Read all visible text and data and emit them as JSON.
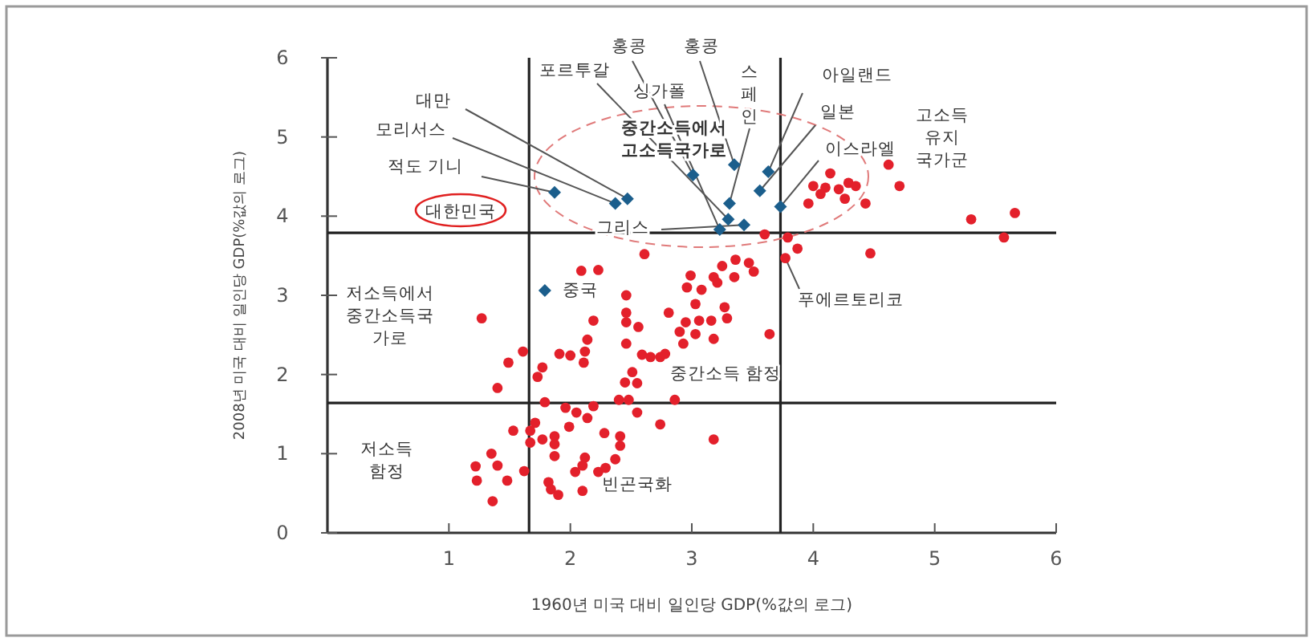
{
  "chart_data": {
    "type": "scatter",
    "xlabel": "1960년 미국 대비 일인당 GDP(%값의 로그)",
    "ylabel": "2008년 미국 대비 일인당 GDP(%값의 로그)",
    "xlim": [
      0,
      6
    ],
    "ylim": [
      0,
      6
    ],
    "xticks": [
      1,
      2,
      3,
      4,
      5,
      6
    ],
    "yticks": [
      0,
      1,
      2,
      3,
      4,
      5,
      6
    ],
    "grid": false,
    "series": [
      {
        "color": "#e3202b",
        "marker": "circle",
        "x": [
          2.61,
          2.09,
          2.23,
          3.36,
          3.25,
          3.47,
          3.51,
          2.99,
          3.18,
          3.35,
          3.21,
          2.96,
          3.08,
          2.46,
          3.03,
          3.27,
          2.46,
          2.81,
          1.27,
          2.19,
          2.46,
          2.95,
          3.06,
          3.16,
          3.29,
          2.56,
          2.9,
          3.03,
          3.18,
          3.64,
          2.14,
          2.46,
          2.93,
          1.61,
          1.91,
          2.0,
          2.12,
          2.59,
          2.66,
          2.74,
          2.78,
          1.49,
          1.77,
          2.11,
          2.51,
          1.73,
          2.45,
          2.55,
          1.4,
          2.4,
          2.48,
          2.86,
          1.79,
          1.96,
          2.05,
          2.19,
          2.55,
          2.14,
          1.71,
          1.53,
          1.67,
          1.99,
          2.74,
          2.28,
          2.41,
          1.77,
          1.67,
          1.87,
          1.87,
          3.18,
          2.41,
          1.35,
          1.87,
          2.12,
          2.37,
          1.22,
          1.4,
          2.1,
          1.62,
          2.04,
          2.23,
          2.29,
          1.23,
          1.48,
          1.82,
          1.84,
          1.9,
          2.1,
          1.36,
          4.62,
          4.14,
          4.0,
          4.1,
          4.21,
          4.29,
          4.35,
          4.06,
          4.26,
          4.43,
          3.96,
          4.71,
          5.3,
          5.66,
          5.57,
          4.47,
          3.6,
          3.79,
          3.87,
          3.77
        ],
        "values": [
          3.52,
          3.31,
          3.32,
          3.45,
          3.37,
          3.41,
          3.3,
          3.25,
          3.23,
          3.23,
          3.16,
          3.1,
          3.07,
          3.0,
          2.89,
          2.85,
          2.78,
          2.78,
          2.71,
          2.68,
          2.66,
          2.66,
          2.68,
          2.68,
          2.71,
          2.6,
          2.54,
          2.51,
          2.45,
          2.51,
          2.44,
          2.39,
          2.39,
          2.29,
          2.26,
          2.24,
          2.29,
          2.25,
          2.22,
          2.22,
          2.26,
          2.15,
          2.09,
          2.15,
          2.03,
          1.97,
          1.9,
          1.89,
          1.83,
          1.68,
          1.68,
          1.68,
          1.65,
          1.58,
          1.52,
          1.6,
          1.52,
          1.45,
          1.39,
          1.29,
          1.29,
          1.34,
          1.37,
          1.26,
          1.22,
          1.18,
          1.14,
          1.22,
          1.12,
          1.18,
          1.1,
          1.0,
          0.97,
          0.95,
          0.93,
          0.84,
          0.85,
          0.85,
          0.78,
          0.77,
          0.77,
          0.82,
          0.66,
          0.66,
          0.64,
          0.55,
          0.48,
          0.53,
          0.4,
          4.65,
          4.54,
          4.38,
          4.36,
          4.34,
          4.42,
          4.38,
          4.28,
          4.22,
          4.16,
          4.16,
          4.38,
          3.96,
          4.04,
          3.73,
          3.53,
          3.77,
          3.73,
          3.59,
          3.47
        ]
      },
      {
        "color": "#1b5e8c",
        "marker": "diamond",
        "x": [
          1.87,
          2.37,
          2.47,
          1.79,
          3.01,
          3.35,
          3.63,
          3.56,
          3.31,
          3.3,
          3.43,
          3.23,
          3.73
        ],
        "values": [
          4.3,
          4.16,
          4.22,
          3.06,
          4.52,
          4.65,
          4.56,
          4.32,
          4.16,
          3.96,
          3.89,
          3.83,
          4.12
        ]
      }
    ],
    "ref_lines": [
      {
        "axis": "x",
        "value": 1.66,
        "color": "#222222"
      },
      {
        "axis": "x",
        "value": 3.73,
        "color": "#222222"
      },
      {
        "axis": "y",
        "value": 3.79,
        "color": "#222222"
      },
      {
        "axis": "y",
        "value": 1.64,
        "color": "#222222"
      }
    ],
    "annotations": [
      {
        "text": "포르투갈",
        "x": 3.3,
        "y": 3.96
      },
      {
        "text": "홍콩",
        "x": 3.01,
        "y": 4.52
      },
      {
        "text": "홍콩",
        "x": 3.35,
        "y": 4.65
      },
      {
        "text": "싱가폴",
        "x": 3.23,
        "y": 3.83
      },
      {
        "text": "스페인",
        "x": 3.31,
        "y": 4.16
      },
      {
        "text": "아일랜드",
        "x": 3.63,
        "y": 4.56
      },
      {
        "text": "일본",
        "x": 3.56,
        "y": 4.32
      },
      {
        "text": "이스라엘",
        "x": 3.73,
        "y": 4.12
      },
      {
        "text": "대만",
        "x": 2.47,
        "y": 4.22
      },
      {
        "text": "모리서스",
        "x": 2.37,
        "y": 4.16
      },
      {
        "text": "적도 기니",
        "x": 1.87,
        "y": 4.3
      },
      {
        "text": "그리스",
        "x": 3.43,
        "y": 3.89
      },
      {
        "text": "푸에르토리코",
        "x": 3.77,
        "y": 3.47
      },
      {
        "text": "중국",
        "x": 1.79,
        "y": 3.06
      },
      "대한민국",
      "중간소득에서 고소득국가로",
      "고소득 유지 국가군",
      "저소득에서 중간소득국 가로",
      "중간소득 함정",
      "저소득 함정",
      "빈곤국화"
    ]
  }
}
